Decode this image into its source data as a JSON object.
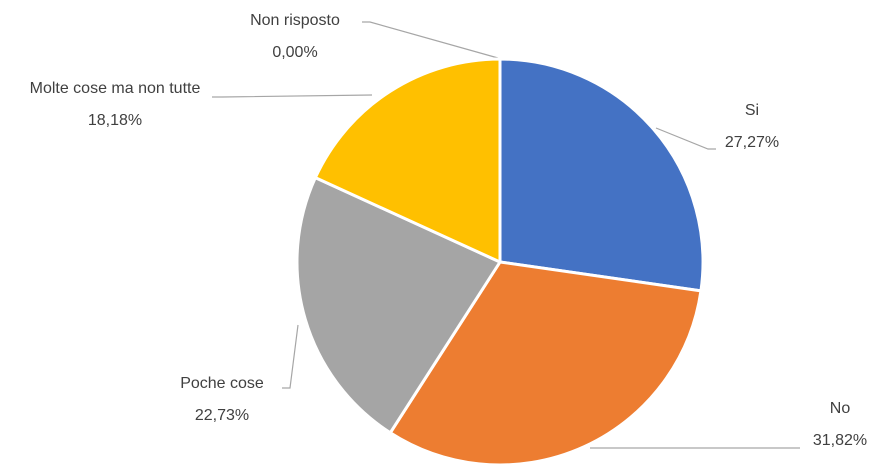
{
  "chart_data": {
    "type": "pie",
    "categories": [
      "Si",
      "No",
      "Poche cose",
      "Molte cose ma non tutte",
      "Non risposto"
    ],
    "values": [
      27.27,
      31.82,
      22.73,
      18.18,
      0.0
    ],
    "value_labels": [
      "27,27%",
      "31,82%",
      "22,73%",
      "18,18%",
      "0,00%"
    ],
    "colors": [
      "#4472c4",
      "#ed7d31",
      "#a5a5a5",
      "#ffc000",
      "#5b9bd5"
    ]
  }
}
